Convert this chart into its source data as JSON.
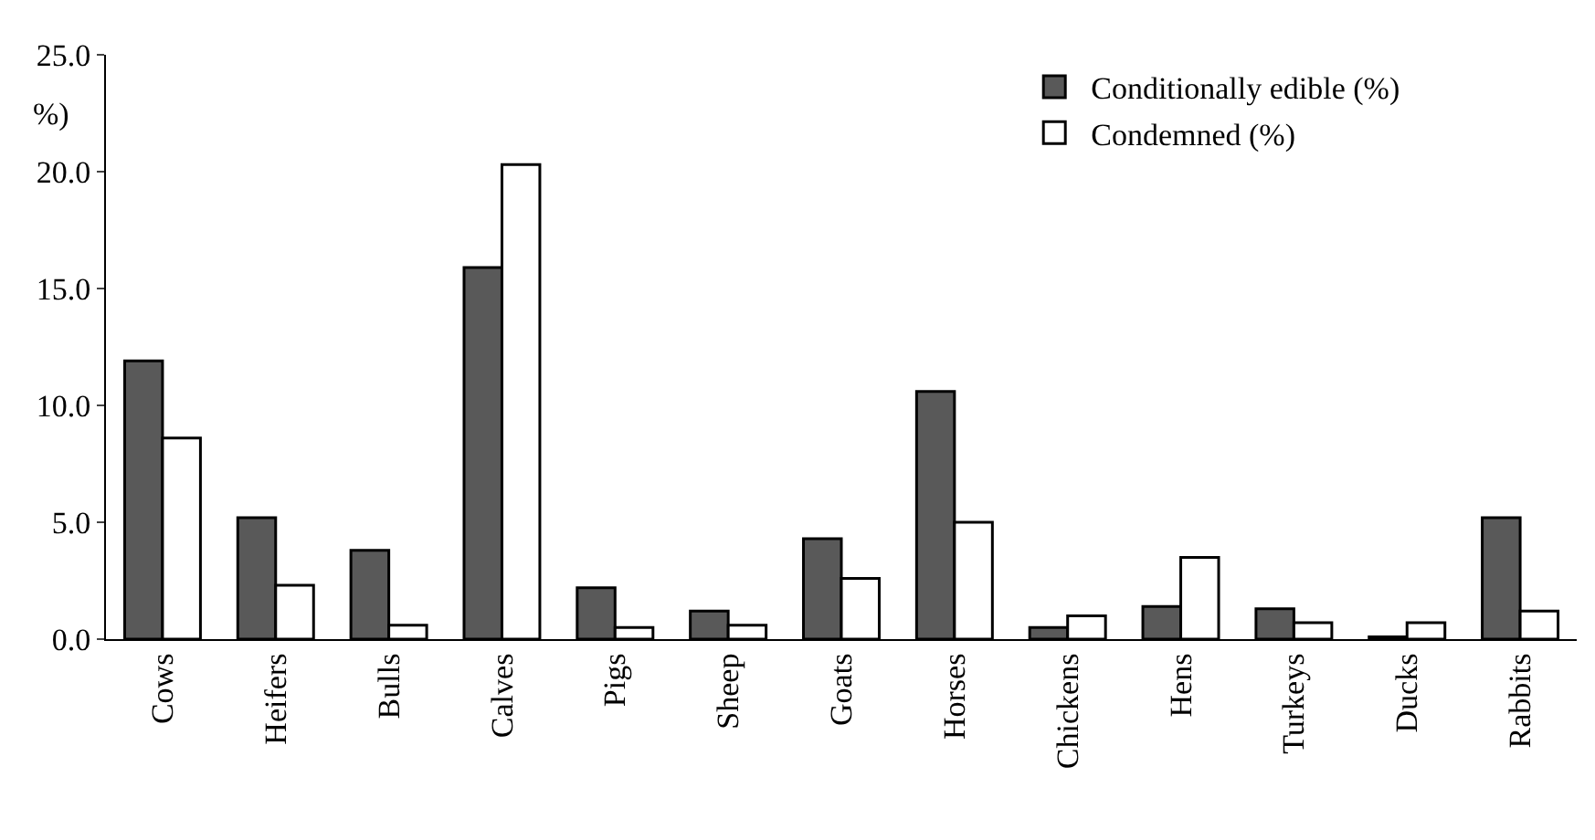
{
  "chart_data": {
    "type": "bar",
    "ylabel": "%)",
    "categories": [
      "Cows",
      "Heifers",
      "Bulls",
      "Calves",
      "Pigs",
      "Sheep",
      "Goats",
      "Horses",
      "Chickens",
      "Hens",
      "Turkeys",
      "Ducks",
      "Rabbits"
    ],
    "series": [
      {
        "name": "Conditionally edible (%)",
        "color": "#595959",
        "values": [
          11.9,
          5.2,
          3.8,
          15.9,
          2.2,
          1.2,
          4.3,
          10.6,
          0.5,
          1.4,
          1.3,
          0.1,
          5.2
        ]
      },
      {
        "name": "Condemned (%)",
        "color": "#ffffff",
        "values": [
          8.6,
          2.3,
          0.6,
          20.3,
          0.5,
          0.6,
          2.6,
          5.0,
          1.0,
          3.5,
          0.7,
          0.7,
          1.2
        ]
      }
    ],
    "ylim": [
      0,
      25
    ],
    "yticks": [
      {
        "value": 0,
        "label": "0.0"
      },
      {
        "value": 5,
        "label": "5.0"
      },
      {
        "value": 10,
        "label": "10.0"
      },
      {
        "value": 15,
        "label": "15.0"
      },
      {
        "value": 20,
        "label": "20.0"
      },
      {
        "value": 25,
        "label": "25.0"
      }
    ],
    "grid": false,
    "legend": "top right"
  }
}
